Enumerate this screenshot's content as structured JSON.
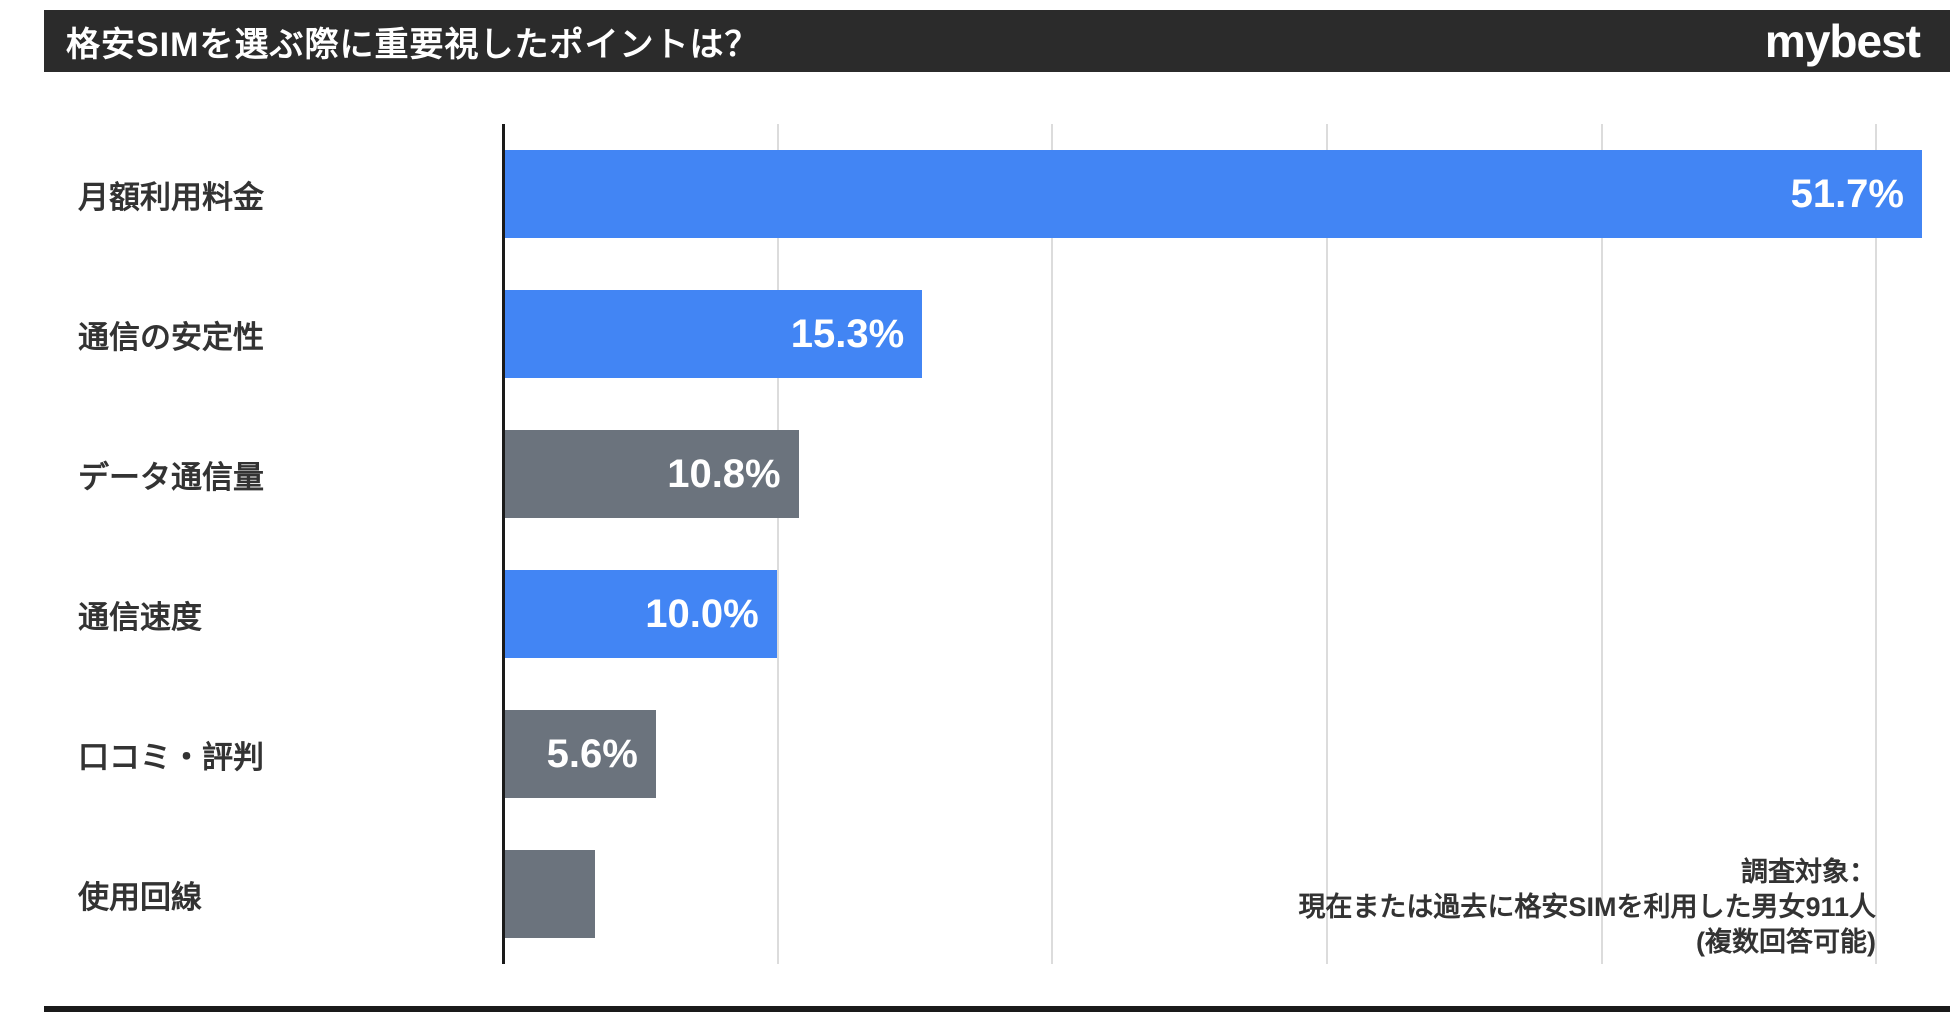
{
  "header": {
    "title": "格安SIMを選ぶ際に重要視したポイントは？",
    "logo": "mybest"
  },
  "chart_data": {
    "type": "bar",
    "orientation": "horizontal",
    "title": "格安SIMを選ぶ際に重要視したポイントは？",
    "categories": [
      "月額利用料金",
      "通信の安定性",
      "データ通信量",
      "通信速度",
      "口コミ・評判",
      "使用回線"
    ],
    "values": [
      51.7,
      15.3,
      10.8,
      10.0,
      5.6,
      3.4
    ],
    "value_labels": [
      "51.7%",
      "15.3%",
      "10.8%",
      "10.0%",
      "5.6%",
      ""
    ],
    "bar_colors": [
      "#4285F4",
      "#4285F4",
      "#6B737D",
      "#4285F4",
      "#6B737D",
      "#6B737D"
    ],
    "xlim": [
      0,
      51.7
    ],
    "gridlines": [
      10,
      20,
      30,
      40,
      50
    ],
    "grid": true,
    "legend": false,
    "value_label_position": "inside-end"
  },
  "note": {
    "lines": [
      "調査対象：",
      "現在または過去に格安SIMを利用した男女911人",
      "(複数回答可能)"
    ]
  },
  "colors": {
    "accent_blue": "#4285F4",
    "bar_gray": "#6B737D",
    "header_bg": "#2b2b2b",
    "header_text": "#ffffff",
    "gridline": "#dcdcdc",
    "axis": "#1a1a1a",
    "label_text": "#333333",
    "bottom_line": "#1a1a1a"
  }
}
